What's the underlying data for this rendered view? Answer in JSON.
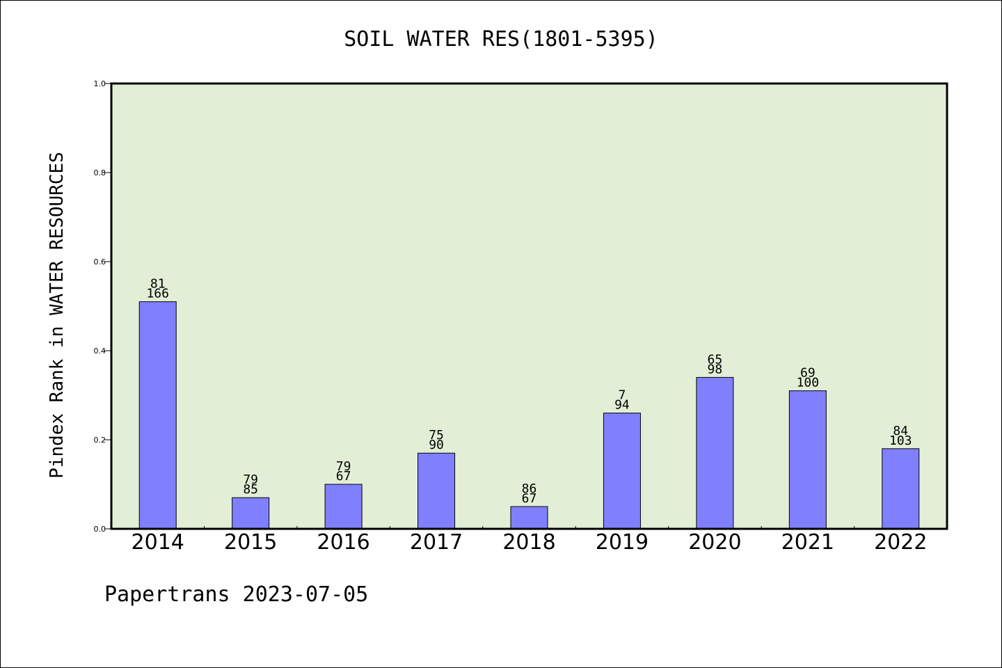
{
  "chart_data": {
    "type": "bar",
    "title": "SOIL WATER RES(1801-5395)",
    "ylabel": "Pindex Rank in WATER RESOURCES",
    "xlabel": "",
    "categories": [
      "2014",
      "2015",
      "2016",
      "2017",
      "2018",
      "2019",
      "2020",
      "2021",
      "2022"
    ],
    "values": [
      0.51,
      0.07,
      0.1,
      0.17,
      0.05,
      0.26,
      0.34,
      0.31,
      0.18
    ],
    "label_top": [
      "81",
      "79",
      "79",
      "75",
      "86",
      "7",
      "65",
      "69",
      "84"
    ],
    "label_bottom": [
      "166",
      "85",
      "67",
      "90",
      "67",
      "94",
      "98",
      "100",
      "103"
    ],
    "ylim": [
      0,
      1.0
    ],
    "yticks": [
      "0.0",
      "0.2",
      "0.4",
      "0.6",
      "0.8",
      "1.0"
    ],
    "grid": false,
    "colors": {
      "bar": "#8080ff",
      "plot_bg": "#e2efd6",
      "axis": "#000000"
    }
  },
  "footer": {
    "text": "Papertrans 2023-07-05"
  }
}
